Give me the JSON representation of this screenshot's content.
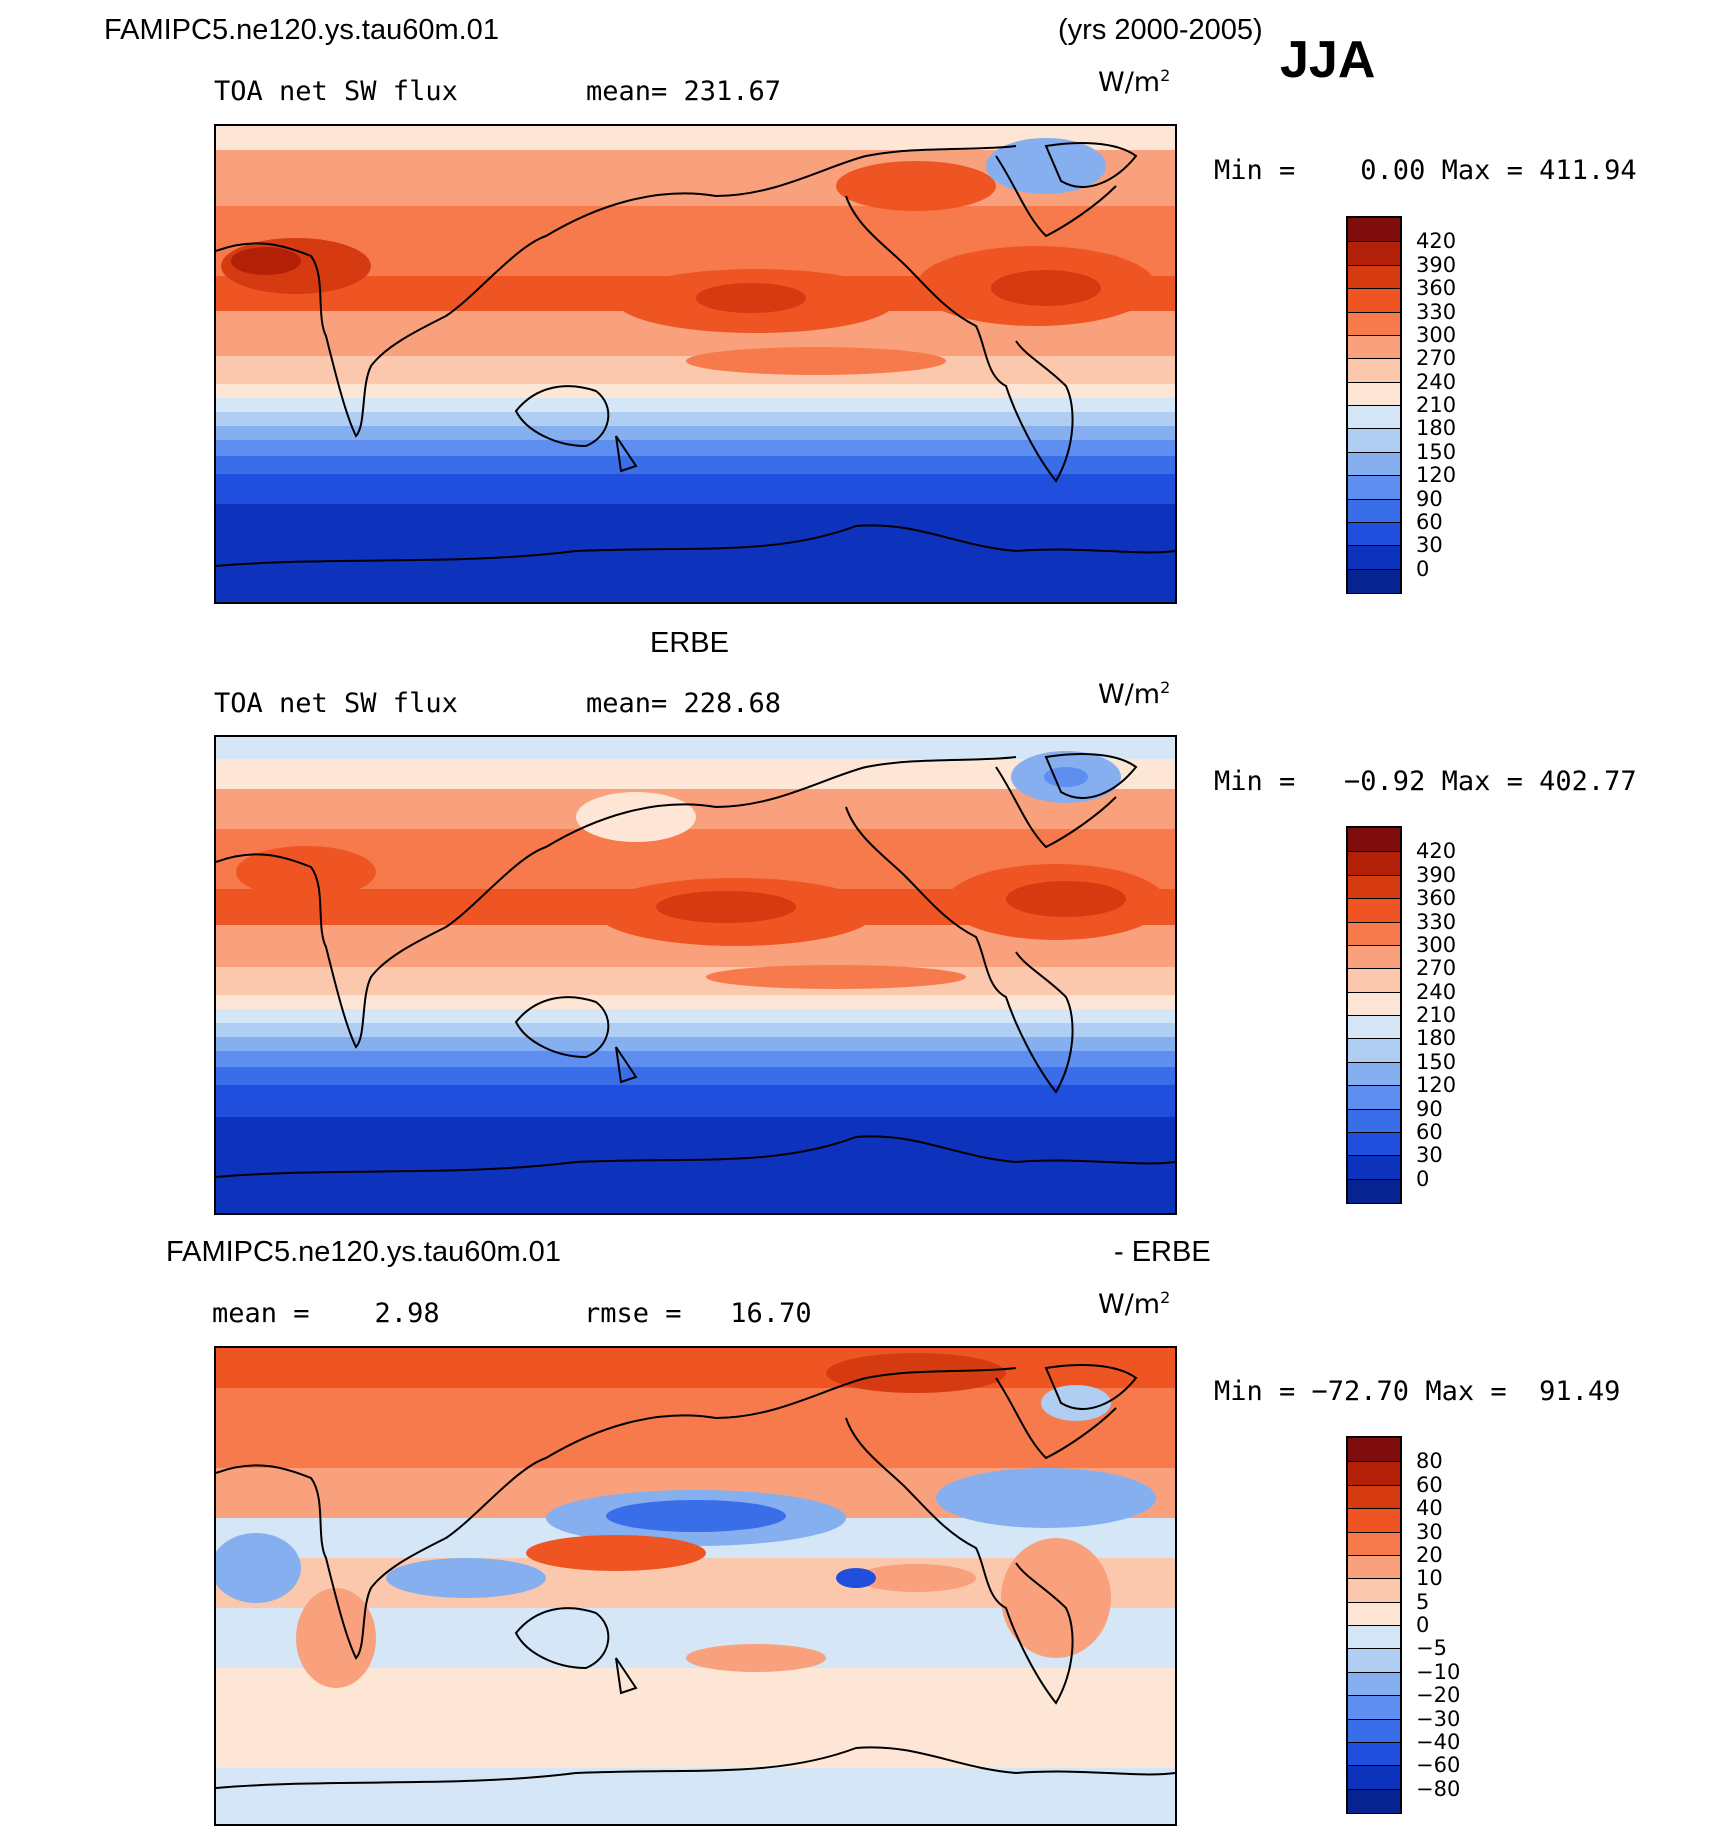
{
  "header": {
    "case_name": "FAMIPC5.ne120.ys.tau60m.01",
    "years": "(yrs 2000-2005)",
    "season": "JJA"
  },
  "panels": [
    {
      "id": "model",
      "heading": "",
      "variable": "TOA net SW flux",
      "stat1": "mean= 231.67",
      "stat2": "",
      "units": "W/m",
      "units_sup": "2",
      "minmax": "Min =    0.00 Max = 411.94",
      "colorbar": {
        "labels": [
          "420",
          "390",
          "360",
          "330",
          "300",
          "270",
          "240",
          "210",
          "180",
          "150",
          "120",
          "90",
          "60",
          "30",
          "0"
        ],
        "colors": [
          "#7f0d0d",
          "#b32008",
          "#d63a10",
          "#ee5522",
          "#f77a4c",
          "#f9a07c",
          "#fbc8ad",
          "#fde6d6",
          "#d5e6f7",
          "#b0cdf2",
          "#86aff0",
          "#5e8ef0",
          "#3a6ee8",
          "#1f4fdc",
          "#0d32bb",
          "#06238f"
        ]
      },
      "map_data": {
        "type": "filled-contour",
        "field": "TOA net SW flux",
        "range": [
          0.0,
          411.94
        ],
        "mean": 231.67,
        "region": "global",
        "central_longitude_deg": 180,
        "pattern": [
          {
            "lat": 85,
            "value": 230
          },
          {
            "lat": 60,
            "value": 280
          },
          {
            "lat": 40,
            "value": 320
          },
          {
            "lat": 20,
            "value": 340
          },
          {
            "lat": 0,
            "value": 280
          },
          {
            "lat": -20,
            "value": 230
          },
          {
            "lat": -40,
            "value": 120
          },
          {
            "lat": -60,
            "value": 40
          },
          {
            "lat": -85,
            "value": 5
          }
        ]
      }
    },
    {
      "id": "obs",
      "heading": "ERBE",
      "variable": "TOA net SW flux",
      "stat1": "mean= 228.68",
      "stat2": "",
      "units": "W/m",
      "units_sup": "2",
      "minmax": "Min =   −0.92 Max = 402.77",
      "colorbar": {
        "labels": [
          "420",
          "390",
          "360",
          "330",
          "300",
          "270",
          "240",
          "210",
          "180",
          "150",
          "120",
          "90",
          "60",
          "30",
          "0"
        ],
        "colors": [
          "#7f0d0d",
          "#b32008",
          "#d63a10",
          "#ee5522",
          "#f77a4c",
          "#f9a07c",
          "#fbc8ad",
          "#fde6d6",
          "#d5e6f7",
          "#b0cdf2",
          "#86aff0",
          "#5e8ef0",
          "#3a6ee8",
          "#1f4fdc",
          "#0d32bb",
          "#06238f"
        ]
      },
      "map_data": {
        "type": "filled-contour",
        "field": "TOA net SW flux",
        "range": [
          -0.92,
          402.77
        ],
        "mean": 228.68,
        "region": "global",
        "central_longitude_deg": 180,
        "pattern": [
          {
            "lat": 85,
            "value": 170
          },
          {
            "lat": 60,
            "value": 250
          },
          {
            "lat": 40,
            "value": 300
          },
          {
            "lat": 20,
            "value": 340
          },
          {
            "lat": 0,
            "value": 280
          },
          {
            "lat": -20,
            "value": 230
          },
          {
            "lat": -40,
            "value": 120
          },
          {
            "lat": -60,
            "value": 40
          },
          {
            "lat": -85,
            "value": 5
          }
        ]
      }
    },
    {
      "id": "diff",
      "heading_left": "FAMIPC5.ne120.ys.tau60m.01",
      "heading_right": "- ERBE",
      "variable": "",
      "stat1": "mean =    2.98",
      "stat2": "rmse =   16.70",
      "units": "W/m",
      "units_sup": "2",
      "minmax": "Min = −72.70 Max =  91.49",
      "colorbar": {
        "labels": [
          "80",
          "60",
          "40",
          "30",
          "20",
          "10",
          "5",
          "0",
          "−5",
          "−10",
          "−20",
          "−30",
          "−40",
          "−60",
          "−80"
        ],
        "colors": [
          "#7f0d0d",
          "#b32008",
          "#d63a10",
          "#ee5522",
          "#f77a4c",
          "#f9a07c",
          "#fbc8ad",
          "#fde6d6",
          "#d5e6f7",
          "#b0cdf2",
          "#86aff0",
          "#5e8ef0",
          "#3a6ee8",
          "#1f4fdc",
          "#0d32bb",
          "#06238f"
        ]
      },
      "map_data": {
        "type": "filled-contour",
        "field": "TOA net SW flux difference",
        "range": [
          -72.7,
          91.49
        ],
        "mean": 2.98,
        "rmse": 16.7,
        "region": "global",
        "central_longitude_deg": 180,
        "pattern": [
          {
            "lat": 85,
            "value": 50
          },
          {
            "lat": 60,
            "value": 25
          },
          {
            "lat": 40,
            "value": 15
          },
          {
            "lat": 20,
            "value": -15
          },
          {
            "lat": 0,
            "value": 10
          },
          {
            "lat": -20,
            "value": -5
          },
          {
            "lat": -40,
            "value": 5
          },
          {
            "lat": -60,
            "value": 3
          },
          {
            "lat": -85,
            "value": -3
          }
        ]
      }
    }
  ]
}
